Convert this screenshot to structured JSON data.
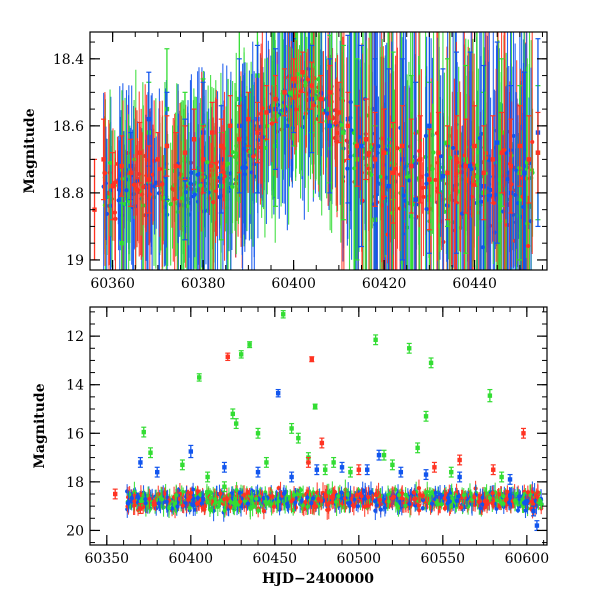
{
  "colors": {
    "green": "#33dd33",
    "blue": "#1155ee",
    "red": "#ff3322",
    "frame": "#000000"
  },
  "chart_data": [
    {
      "type": "scatter",
      "title": "",
      "xlabel": "",
      "ylabel": "Magnitude",
      "y_inverted": true,
      "xlim": [
        60355,
        60456
      ],
      "ylim": [
        19.03,
        18.32
      ],
      "xticks": [
        60360,
        60380,
        60400,
        60420,
        60440
      ],
      "xtick_labels": [
        "60360",
        "60380",
        "60400",
        "60420",
        "60440"
      ],
      "yticks": [
        18.4,
        18.6,
        18.8,
        19
      ],
      "ytick_labels": [
        "18.4",
        "18.6",
        "18.8",
        "19"
      ],
      "series": [
        {
          "color": "green",
          "points": [
            [
              60362,
              18.95
            ],
            [
              60368,
              18.62
            ],
            [
              60372,
              18.55
            ],
            [
              60376,
              18.7
            ],
            [
              60380,
              18.6
            ],
            [
              60384,
              18.78
            ],
            [
              60388,
              18.52
            ],
            [
              60392,
              18.45
            ],
            [
              60396,
              18.66
            ],
            [
              60400,
              18.5
            ],
            [
              60404,
              18.42
            ],
            [
              60408,
              18.55
            ],
            [
              60411,
              18.62
            ],
            [
              60414,
              18.7
            ],
            [
              60418,
              18.88
            ],
            [
              60422,
              18.6
            ],
            [
              60426,
              18.75
            ],
            [
              60430,
              18.82
            ],
            [
              60434,
              18.65
            ],
            [
              60438,
              18.7
            ],
            [
              60442,
              18.8
            ],
            [
              60446,
              18.62
            ],
            [
              60450,
              18.74
            ],
            [
              60454,
              18.68
            ]
          ],
          "errors": [
            0.12,
            0.15,
            0.18,
            0.2,
            0.14,
            0.16,
            0.22,
            0.25,
            0.18,
            0.16,
            0.2,
            0.22,
            0.26,
            0.3,
            0.28,
            0.22,
            0.3,
            0.35,
            0.25,
            0.28,
            0.3,
            0.22,
            0.26,
            0.2
          ]
        },
        {
          "color": "blue",
          "points": [
            [
              60364,
              18.72
            ],
            [
              60368,
              18.58
            ],
            [
              60372,
              18.66
            ],
            [
              60376,
              18.76
            ],
            [
              60380,
              18.62
            ],
            [
              60384,
              18.7
            ],
            [
              60388,
              18.6
            ],
            [
              60392,
              18.58
            ],
            [
              60396,
              18.55
            ],
            [
              60400,
              18.48
            ],
            [
              60404,
              18.52
            ],
            [
              60408,
              18.6
            ],
            [
              60412,
              18.58
            ],
            [
              60415,
              18.66
            ],
            [
              60418,
              18.72
            ],
            [
              60421,
              18.78
            ],
            [
              60424,
              18.7
            ],
            [
              60427,
              18.82
            ],
            [
              60430,
              18.6
            ],
            [
              60433,
              18.75
            ],
            [
              60436,
              18.68
            ],
            [
              60439,
              18.72
            ],
            [
              60442,
              18.78
            ],
            [
              60445,
              18.65
            ],
            [
              60448,
              18.8
            ],
            [
              60451,
              18.74
            ],
            [
              60454,
              18.62
            ]
          ],
          "errors": [
            0.1,
            0.14,
            0.16,
            0.18,
            0.15,
            0.16,
            0.2,
            0.22,
            0.18,
            0.14,
            0.16,
            0.2,
            0.25,
            0.3,
            0.32,
            0.35,
            0.3,
            0.35,
            0.38,
            0.32,
            0.3,
            0.34,
            0.36,
            0.3,
            0.32,
            0.3,
            0.28
          ]
        },
        {
          "color": "red",
          "points": [
            [
              60356,
              18.85
            ],
            [
              60358,
              18.7
            ],
            [
              60360,
              18.78
            ],
            [
              60362,
              18.72
            ],
            [
              60364,
              18.74
            ],
            [
              60366,
              18.68
            ],
            [
              60368,
              18.76
            ],
            [
              60370,
              18.7
            ],
            [
              60372,
              18.66
            ],
            [
              60374,
              18.72
            ],
            [
              60376,
              18.68
            ],
            [
              60378,
              18.64
            ],
            [
              60380,
              18.7
            ],
            [
              60382,
              18.62
            ],
            [
              60384,
              18.66
            ],
            [
              60386,
              18.6
            ],
            [
              60388,
              18.64
            ],
            [
              60390,
              18.58
            ],
            [
              60392,
              18.62
            ],
            [
              60394,
              18.56
            ],
            [
              60396,
              18.52
            ],
            [
              60398,
              18.5
            ],
            [
              60400,
              18.46
            ],
            [
              60402,
              18.44
            ],
            [
              60404,
              18.48
            ],
            [
              60406,
              18.52
            ],
            [
              60408,
              18.5
            ],
            [
              60410,
              18.56
            ],
            [
              60412,
              18.6
            ],
            [
              60414,
              18.66
            ],
            [
              60416,
              18.64
            ],
            [
              60418,
              18.7
            ],
            [
              60420,
              18.68
            ],
            [
              60422,
              18.74
            ],
            [
              60424,
              18.66
            ],
            [
              60426,
              18.72
            ],
            [
              60428,
              18.7
            ],
            [
              60430,
              18.76
            ],
            [
              60432,
              18.68
            ],
            [
              60434,
              18.74
            ],
            [
              60436,
              18.7
            ],
            [
              60438,
              18.72
            ],
            [
              60440,
              18.66
            ],
            [
              60442,
              18.74
            ],
            [
              60444,
              18.7
            ],
            [
              60446,
              18.68
            ],
            [
              60448,
              18.72
            ],
            [
              60450,
              18.66
            ],
            [
              60452,
              18.7
            ],
            [
              60454,
              18.68
            ]
          ],
          "errors": [
            0.15,
            0.12,
            0.1,
            0.09,
            0.1,
            0.09,
            0.1,
            0.08,
            0.09,
            0.1,
            0.08,
            0.09,
            0.1,
            0.09,
            0.08,
            0.09,
            0.1,
            0.08,
            0.09,
            0.08,
            0.07,
            0.07,
            0.06,
            0.06,
            0.07,
            0.07,
            0.08,
            0.09,
            0.1,
            0.12,
            0.12,
            0.14,
            0.13,
            0.15,
            0.12,
            0.14,
            0.13,
            0.15,
            0.12,
            0.14,
            0.13,
            0.14,
            0.12,
            0.14,
            0.13,
            0.12,
            0.14,
            0.12,
            0.13,
            0.12
          ]
        }
      ]
    },
    {
      "type": "scatter",
      "title": "",
      "xlabel": "HJD−2400000",
      "ylabel": "Magnitude",
      "y_inverted": true,
      "xlim": [
        60340,
        60612
      ],
      "ylim": [
        20.6,
        10.8
      ],
      "xticks": [
        60350,
        60400,
        60450,
        60500,
        60550,
        60600
      ],
      "xtick_labels": [
        "60350",
        "60400",
        "60450",
        "60500",
        "60550",
        "60600"
      ],
      "yticks": [
        12,
        14,
        16,
        18,
        20
      ],
      "ytick_labels": [
        "12",
        "14",
        "16",
        "18",
        "20"
      ],
      "series": [
        {
          "color": "green",
          "points": [
            [
              60372,
              15.95
            ],
            [
              60376,
              16.8
            ],
            [
              60395,
              17.3
            ],
            [
              60405,
              13.7
            ],
            [
              60410,
              17.8
            ],
            [
              60420,
              18.2
            ],
            [
              60425,
              15.2
            ],
            [
              60427,
              15.6
            ],
            [
              60430,
              12.75
            ],
            [
              60435,
              12.35
            ],
            [
              60440,
              16.0
            ],
            [
              60445,
              17.2
            ],
            [
              60455,
              11.1
            ],
            [
              60460,
              15.8
            ],
            [
              60464,
              16.2
            ],
            [
              60470,
              17.0
            ],
            [
              60474,
              14.9
            ],
            [
              60480,
              17.5
            ],
            [
              60485,
              17.2
            ],
            [
              60495,
              17.6
            ],
            [
              60510,
              12.15
            ],
            [
              60515,
              16.9
            ],
            [
              60520,
              17.3
            ],
            [
              60530,
              12.5
            ],
            [
              60535,
              16.6
            ],
            [
              60540,
              15.3
            ],
            [
              60543,
              13.1
            ],
            [
              60555,
              17.6
            ],
            [
              60578,
              14.45
            ],
            [
              60585,
              17.8
            ]
          ],
          "errors": [
            0.2,
            0.2,
            0.2,
            0.15,
            0.2,
            0.2,
            0.2,
            0.2,
            0.15,
            0.12,
            0.2,
            0.2,
            0.15,
            0.2,
            0.2,
            0.2,
            0.1,
            0.2,
            0.2,
            0.2,
            0.2,
            0.2,
            0.2,
            0.2,
            0.2,
            0.2,
            0.2,
            0.2,
            0.25,
            0.2
          ]
        },
        {
          "color": "blue",
          "points": [
            [
              60370,
              17.2
            ],
            [
              60380,
              17.6
            ],
            [
              60400,
              16.75
            ],
            [
              60420,
              17.4
            ],
            [
              60440,
              17.6
            ],
            [
              60452,
              14.35
            ],
            [
              60460,
              17.8
            ],
            [
              60475,
              17.5
            ],
            [
              60490,
              17.4
            ],
            [
              60505,
              17.5
            ],
            [
              60512,
              16.9
            ],
            [
              60525,
              17.6
            ],
            [
              60540,
              17.7
            ],
            [
              60560,
              17.8
            ],
            [
              60590,
              17.9
            ],
            [
              60604,
              19.2
            ],
            [
              60606,
              19.8
            ]
          ],
          "errors": [
            0.2,
            0.2,
            0.25,
            0.2,
            0.2,
            0.15,
            0.2,
            0.2,
            0.2,
            0.2,
            0.2,
            0.2,
            0.2,
            0.2,
            0.2,
            0.2,
            0.2
          ]
        },
        {
          "color": "red",
          "points": [
            [
              60422,
              12.85
            ],
            [
              60472,
              12.95
            ],
            [
              60478,
              16.4
            ],
            [
              60470,
              17.2
            ],
            [
              60500,
              17.5
            ],
            [
              60545,
              17.4
            ],
            [
              60560,
              17.1
            ],
            [
              60580,
              17.5
            ],
            [
              60598,
              16.0
            ],
            [
              60355,
              18.5
            ],
            [
              60370,
              19.1
            ]
          ],
          "errors": [
            0.15,
            0.1,
            0.2,
            0.2,
            0.2,
            0.2,
            0.2,
            0.2,
            0.2,
            0.2,
            0.2
          ]
        }
      ]
    }
  ]
}
